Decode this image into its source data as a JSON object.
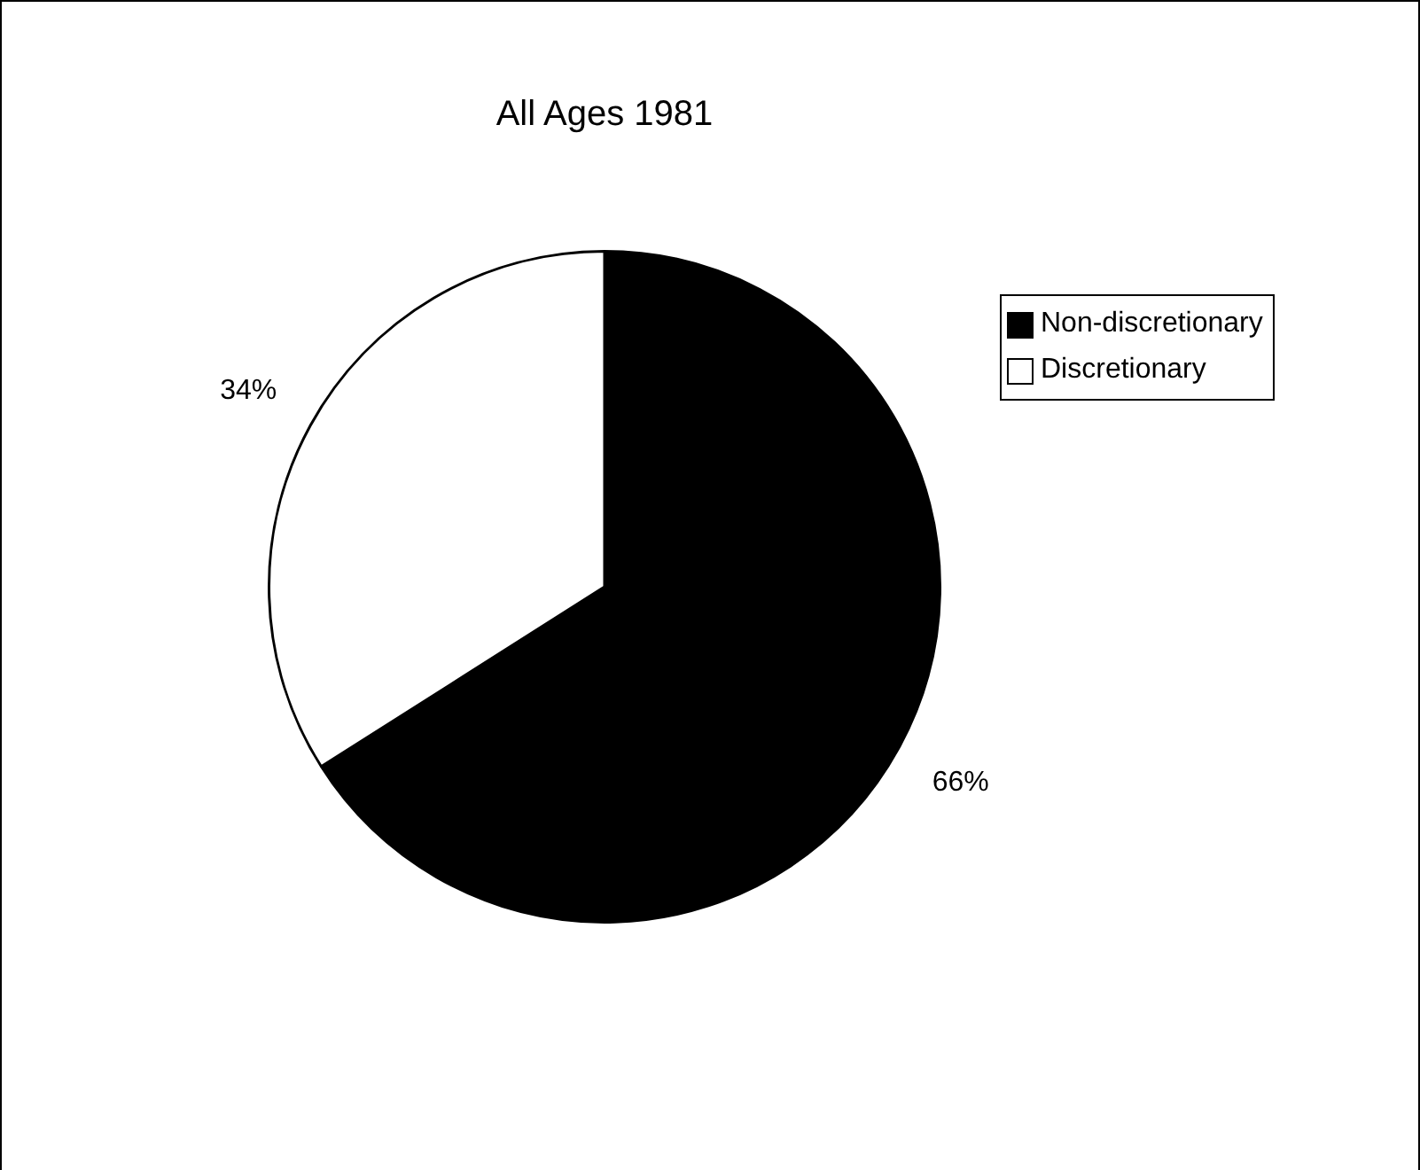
{
  "chart_data": {
    "type": "pie",
    "title": "All Ages 1981",
    "categories": [
      "Non-discretionary",
      "Discretionary"
    ],
    "values": [
      66,
      34
    ],
    "value_labels": [
      "66%",
      "34%"
    ],
    "colors": [
      "#000000",
      "#ffffff"
    ],
    "legend": "top right"
  }
}
